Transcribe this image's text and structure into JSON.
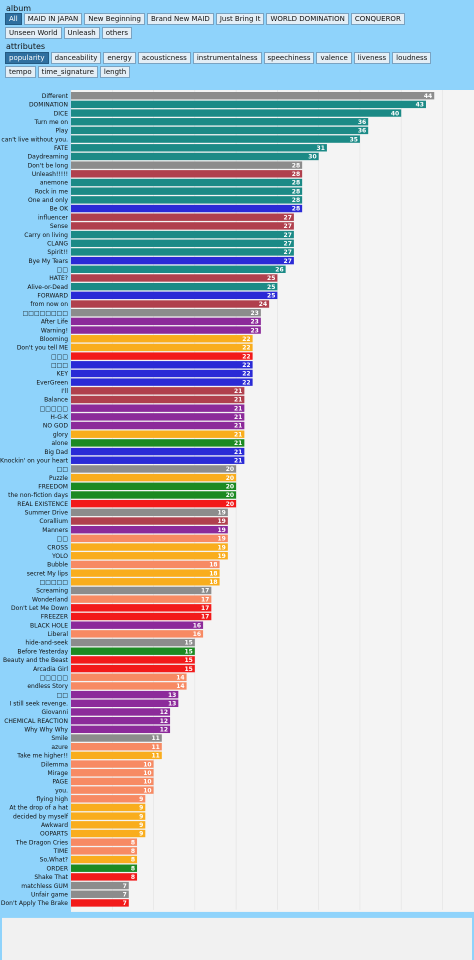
{
  "album_label": "album",
  "attributes_label": "attributes",
  "album_buttons": [
    "All",
    "MAID IN JAPAN",
    "New Beginning",
    "Brand New MAID",
    "Just Bring It",
    "WORLD DOMINATION",
    "CONQUEROR",
    "Unseen World",
    "Unleash",
    "others"
  ],
  "album_selected": "All",
  "attribute_buttons": [
    "popularity",
    "danceability",
    "energy",
    "acousticness",
    "instrumentalness",
    "speechiness",
    "valence",
    "liveness",
    "loudness",
    "tempo",
    "time_signature",
    "length"
  ],
  "attribute_selected": "popularity",
  "colors": {
    "gray": "#8c8c8c",
    "teal": "#1b8a86",
    "maroon": "#b0404d",
    "blue": "#2a2ad6",
    "purple": "#8c2a9a",
    "orange": "#f9ad1d",
    "red": "#f21a1a",
    "green": "#1c8a22",
    "salmon": "#f78a63"
  },
  "chart_data": {
    "type": "bar",
    "orientation": "horizontal",
    "xlim": [
      0,
      47
    ],
    "grid": true,
    "bars": [
      {
        "label": "Different",
        "value": 44,
        "color": "gray"
      },
      {
        "label": "DOMINATION",
        "value": 43,
        "color": "teal"
      },
      {
        "label": "DICE",
        "value": 40,
        "color": "teal"
      },
      {
        "label": "Turn me on",
        "value": 36,
        "color": "teal"
      },
      {
        "label": "Play",
        "value": 36,
        "color": "teal"
      },
      {
        "label": "I can't live without you.",
        "value": 35,
        "color": "teal"
      },
      {
        "label": "FATE",
        "value": 31,
        "color": "teal"
      },
      {
        "label": "Daydreaming",
        "value": 30,
        "color": "teal"
      },
      {
        "label": "Don't be long",
        "value": 28,
        "color": "gray"
      },
      {
        "label": "Unleash!!!!!",
        "value": 28,
        "color": "maroon"
      },
      {
        "label": "anemone",
        "value": 28,
        "color": "teal"
      },
      {
        "label": "Rock in me",
        "value": 28,
        "color": "teal"
      },
      {
        "label": "One and only",
        "value": 28,
        "color": "teal"
      },
      {
        "label": "Be OK",
        "value": 28,
        "color": "blue"
      },
      {
        "label": "influencer",
        "value": 27,
        "color": "maroon"
      },
      {
        "label": "Sense",
        "value": 27,
        "color": "maroon"
      },
      {
        "label": "Carry on living",
        "value": 27,
        "color": "teal"
      },
      {
        "label": "CLANG",
        "value": 27,
        "color": "teal"
      },
      {
        "label": "Spirit!!",
        "value": 27,
        "color": "teal"
      },
      {
        "label": "Bye My Tears",
        "value": 27,
        "color": "blue"
      },
      {
        "label": "□□",
        "value": 26,
        "color": "teal"
      },
      {
        "label": "HATE?",
        "value": 25,
        "color": "maroon"
      },
      {
        "label": "Alive-or-Dead",
        "value": 25,
        "color": "teal"
      },
      {
        "label": "FORWARD",
        "value": 25,
        "color": "blue"
      },
      {
        "label": "from now on",
        "value": 24,
        "color": "maroon"
      },
      {
        "label": "□□□□□□□□",
        "value": 23,
        "color": "gray"
      },
      {
        "label": "After Life",
        "value": 23,
        "color": "purple"
      },
      {
        "label": "Warning!",
        "value": 23,
        "color": "purple"
      },
      {
        "label": "Blooming",
        "value": 22,
        "color": "orange"
      },
      {
        "label": "Don't you tell ME",
        "value": 22,
        "color": "orange"
      },
      {
        "label": "□□□",
        "value": 22,
        "color": "red"
      },
      {
        "label": "□□□",
        "value": 22,
        "color": "blue"
      },
      {
        "label": "KEY",
        "value": 22,
        "color": "blue"
      },
      {
        "label": "EverGreen",
        "value": 22,
        "color": "blue"
      },
      {
        "label": "I'll",
        "value": 21,
        "color": "maroon"
      },
      {
        "label": "Balance",
        "value": 21,
        "color": "maroon"
      },
      {
        "label": "□□□□□",
        "value": 21,
        "color": "purple"
      },
      {
        "label": "H-G-K",
        "value": 21,
        "color": "purple"
      },
      {
        "label": "NO GOD",
        "value": 21,
        "color": "purple"
      },
      {
        "label": "glory",
        "value": 21,
        "color": "orange"
      },
      {
        "label": "alone",
        "value": 21,
        "color": "green"
      },
      {
        "label": "Big Dad",
        "value": 21,
        "color": "blue"
      },
      {
        "label": "Knockin' on your heart",
        "value": 21,
        "color": "blue"
      },
      {
        "label": "□□",
        "value": 20,
        "color": "gray"
      },
      {
        "label": "Puzzle",
        "value": 20,
        "color": "orange"
      },
      {
        "label": "FREEDOM",
        "value": 20,
        "color": "green"
      },
      {
        "label": "the non-fiction days",
        "value": 20,
        "color": "green"
      },
      {
        "label": "REAL EXISTENCE",
        "value": 20,
        "color": "red"
      },
      {
        "label": "Summer Drive",
        "value": 19,
        "color": "gray"
      },
      {
        "label": "Corallium",
        "value": 19,
        "color": "maroon"
      },
      {
        "label": "Manners",
        "value": 19,
        "color": "purple"
      },
      {
        "label": "□□",
        "value": 19,
        "color": "salmon"
      },
      {
        "label": "CROSS",
        "value": 19,
        "color": "orange"
      },
      {
        "label": "YOLO",
        "value": 19,
        "color": "orange"
      },
      {
        "label": "Bubble",
        "value": 18,
        "color": "salmon"
      },
      {
        "label": "secret My lips",
        "value": 18,
        "color": "orange"
      },
      {
        "label": "□□□□□",
        "value": 18,
        "color": "orange"
      },
      {
        "label": "Screaming",
        "value": 17,
        "color": "gray"
      },
      {
        "label": "Wonderland",
        "value": 17,
        "color": "salmon"
      },
      {
        "label": "Don't Let Me Down",
        "value": 17,
        "color": "red"
      },
      {
        "label": "FREEZER",
        "value": 17,
        "color": "red"
      },
      {
        "label": "BLACK HOLE",
        "value": 16,
        "color": "purple"
      },
      {
        "label": "Liberal",
        "value": 16,
        "color": "salmon"
      },
      {
        "label": "hide-and-seek",
        "value": 15,
        "color": "gray"
      },
      {
        "label": "Before Yesterday",
        "value": 15,
        "color": "green"
      },
      {
        "label": "Beauty and the Beast",
        "value": 15,
        "color": "red"
      },
      {
        "label": "Arcadia Girl",
        "value": 15,
        "color": "red"
      },
      {
        "label": "□□□□□",
        "value": 14,
        "color": "salmon"
      },
      {
        "label": "endless Story",
        "value": 14,
        "color": "salmon"
      },
      {
        "label": "□□",
        "value": 13,
        "color": "purple"
      },
      {
        "label": "I still seek revenge.",
        "value": 13,
        "color": "purple"
      },
      {
        "label": "Giovanni",
        "value": 12,
        "color": "purple"
      },
      {
        "label": "CHEMICAL REACTION",
        "value": 12,
        "color": "purple"
      },
      {
        "label": "Why Why Why",
        "value": 12,
        "color": "purple"
      },
      {
        "label": "Smile",
        "value": 11,
        "color": "gray"
      },
      {
        "label": "azure",
        "value": 11,
        "color": "salmon"
      },
      {
        "label": "Take me higher!!",
        "value": 11,
        "color": "orange"
      },
      {
        "label": "Dilemma",
        "value": 10,
        "color": "salmon"
      },
      {
        "label": "Mirage",
        "value": 10,
        "color": "salmon"
      },
      {
        "label": "PAGE",
        "value": 10,
        "color": "salmon"
      },
      {
        "label": "you.",
        "value": 10,
        "color": "salmon"
      },
      {
        "label": "flying high",
        "value": 9,
        "color": "salmon"
      },
      {
        "label": "At the drop of a hat",
        "value": 9,
        "color": "orange"
      },
      {
        "label": "decided by myself",
        "value": 9,
        "color": "orange"
      },
      {
        "label": "Awkward",
        "value": 9,
        "color": "orange"
      },
      {
        "label": "OOPARTS",
        "value": 9,
        "color": "orange"
      },
      {
        "label": "The Dragon Cries",
        "value": 8,
        "color": "salmon"
      },
      {
        "label": "TIME",
        "value": 8,
        "color": "salmon"
      },
      {
        "label": "So,What?",
        "value": 8,
        "color": "orange"
      },
      {
        "label": "ORDER",
        "value": 8,
        "color": "green"
      },
      {
        "label": "Shake That",
        "value": 8,
        "color": "red"
      },
      {
        "label": "matchless GUM",
        "value": 7,
        "color": "gray"
      },
      {
        "label": "Unfair game",
        "value": 7,
        "color": "gray"
      },
      {
        "label": "Don't Apply The Brake",
        "value": 7,
        "color": "red"
      }
    ]
  }
}
